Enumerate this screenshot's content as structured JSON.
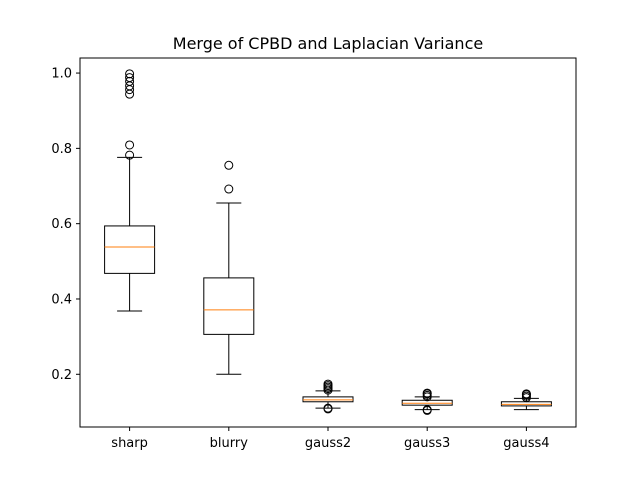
{
  "chart_data": {
    "type": "box",
    "title": "Merge of CPBD and Laplacian Variance",
    "xlabel": "",
    "ylabel": "",
    "categories": [
      "sharp",
      "blurry",
      "gauss2",
      "gauss3",
      "gauss4"
    ],
    "ylim": [
      0.06,
      1.04
    ],
    "yticks": [
      0.2,
      0.4,
      0.6,
      0.8,
      1.0
    ],
    "ytick_labels": [
      "0.2",
      "0.4",
      "0.6",
      "0.8",
      "1.0"
    ],
    "boxes": [
      {
        "name": "sharp",
        "whisker_low": 0.368,
        "q1": 0.468,
        "median": 0.538,
        "q3": 0.594,
        "whisker_high": 0.776,
        "outliers": [
          0.782,
          0.809,
          0.944,
          0.956,
          0.966,
          0.978,
          0.988,
          0.998
        ]
      },
      {
        "name": "blurry",
        "whisker_low": 0.2,
        "q1": 0.306,
        "median": 0.371,
        "q3": 0.456,
        "whisker_high": 0.655,
        "outliers": [
          0.692,
          0.755
        ]
      },
      {
        "name": "gauss2",
        "whisker_low": 0.11,
        "q1": 0.127,
        "median": 0.132,
        "q3": 0.14,
        "whisker_high": 0.156,
        "outliers": [
          0.108,
          0.11,
          0.158,
          0.162,
          0.166,
          0.17,
          0.174
        ]
      },
      {
        "name": "gauss3",
        "whisker_low": 0.106,
        "q1": 0.118,
        "median": 0.123,
        "q3": 0.131,
        "whisker_high": 0.14,
        "outliers": [
          0.104,
          0.106,
          0.14,
          0.144,
          0.148,
          0.15
        ]
      },
      {
        "name": "gauss4",
        "whisker_low": 0.106,
        "q1": 0.116,
        "median": 0.12,
        "q3": 0.127,
        "whisker_high": 0.136,
        "outliers": [
          0.138,
          0.142,
          0.146,
          0.148
        ]
      }
    ],
    "grid": false,
    "legend": "none"
  },
  "colors": {
    "box": "#000000",
    "median": "#ff7f0e",
    "axes": "#000000",
    "background": "#ffffff"
  }
}
